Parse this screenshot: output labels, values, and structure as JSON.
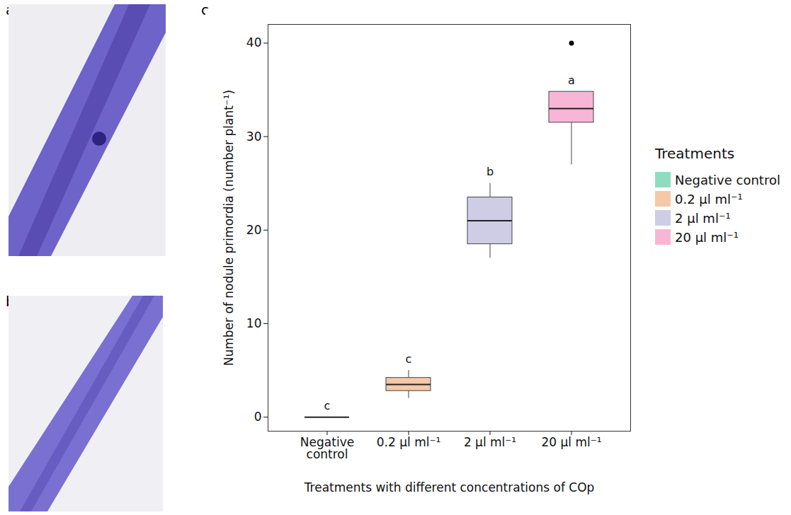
{
  "chart_data": {
    "type": "box",
    "panel_labels": [
      "a",
      "b",
      "c"
    ],
    "x_label": "Treatments with different concentrations of COp",
    "y_label": "Number of nodule primordia (number plant⁻¹)",
    "categories": [
      "Negative control",
      "0.2 µl ml⁻¹",
      "2 µl ml⁻¹",
      "20 µl ml⁻¹"
    ],
    "colors": [
      "#8fdcc2",
      "#f5c9a7",
      "#cfcce6",
      "#f7b6d6"
    ],
    "whisker_low": [
      0,
      2,
      17,
      27
    ],
    "q1": [
      0,
      2.8,
      18.5,
      31.5
    ],
    "median": [
      0,
      3.5,
      21,
      33
    ],
    "q3": [
      0,
      4.2,
      23.5,
      34.8
    ],
    "whisker_high": [
      0,
      5,
      25,
      34.8
    ],
    "outliers": [
      [],
      [],
      [],
      [
        40
      ]
    ],
    "significance_letters": [
      "c",
      "c",
      "b",
      "a"
    ],
    "legend_title": "Treatments",
    "legend": "right",
    "ylim": [
      -1.5,
      42
    ],
    "yticks": [
      0,
      10,
      20,
      30,
      40
    ],
    "grid": false
  }
}
